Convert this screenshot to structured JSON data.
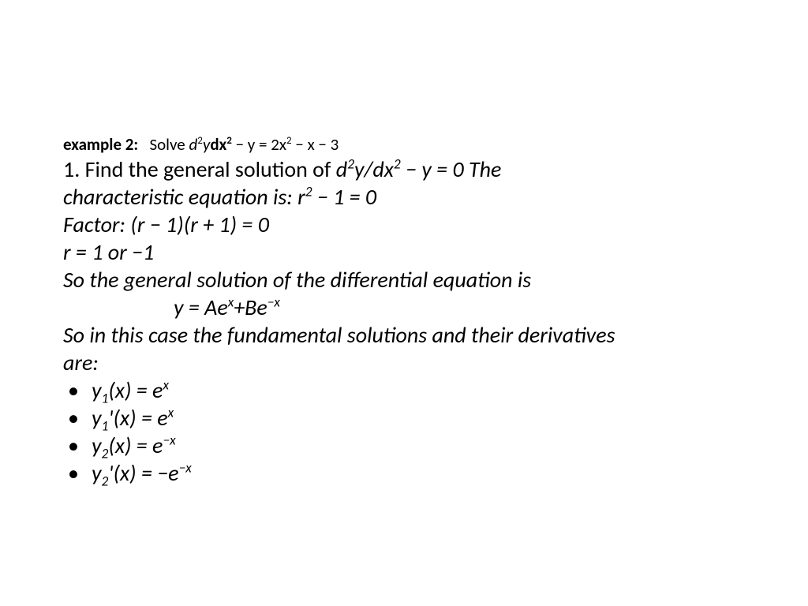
{
  "example": {
    "label": "example 2:",
    "solve_prefix": "Solve"
  },
  "fontsize": {
    "example": 21,
    "body": 28
  },
  "colors": {
    "text": "#000000",
    "background": "#ffffff"
  },
  "lines": {
    "step1_prefix": "1. Find the general solution of",
    "step1_eq_italic": "d",
    "step1_eq_rest": "y/dx",
    "step1_tail": " − y = 0 The",
    "char_eq": "characteristic equation is: r",
    "char_eq_tail": " − 1 = 0",
    "factor": "Factor: (r − 1)(r + 1) = 0",
    "roots": "r = 1 or −1",
    "so_general": "So the general solution of the differential equation is",
    "y_eq": "y = Ae",
    "y_eq_plus": "+Be",
    "so_case_1": "So in this case the fundamental solutions and their derivatives",
    "so_case_2": "are:"
  },
  "bullets": {
    "b1_pre": "y",
    "b1_mid": "(x) = e",
    "b2_pre": "y",
    "b2_mid": "'(x) = e",
    "b3_pre": "y",
    "b3_mid": "(x) = e",
    "b4_pre": "y",
    "b4_mid": "'(x) = −e"
  }
}
